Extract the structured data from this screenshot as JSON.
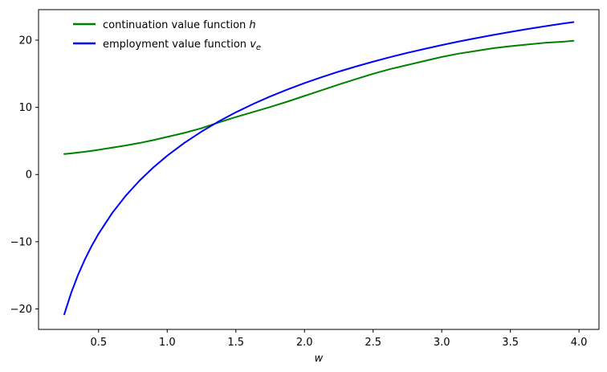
{
  "figure": {
    "background": "#ffffff",
    "frame_color": "#000000"
  },
  "legend": {
    "position": "upper left",
    "frame": false,
    "items": [
      {
        "label": "continuation value function ",
        "var": "h",
        "sub": "",
        "color": "#008000"
      },
      {
        "label": "employment value function ",
        "var": "v",
        "sub": "e",
        "color": "#0000ff"
      }
    ]
  },
  "chart_data": {
    "type": "line",
    "title": "",
    "xlabel": "w",
    "ylabel": "",
    "grid": false,
    "legend_position": "upper left",
    "xlim": [
      0.0625,
      4.1455
    ],
    "ylim": [
      -23.05,
      24.54
    ],
    "xticks": [
      0.5,
      1.0,
      1.5,
      2.0,
      2.5,
      3.0,
      3.5,
      4.0
    ],
    "xtick_labels": [
      "0.5",
      "1.0",
      "1.5",
      "2.0",
      "2.5",
      "3.0",
      "3.5",
      "4.0"
    ],
    "yticks": [
      -20,
      -10,
      0,
      10,
      20
    ],
    "ytick_labels": [
      "−20",
      "−10",
      "0",
      "10",
      "20"
    ],
    "x": [
      0.25,
      0.3,
      0.35,
      0.4,
      0.45,
      0.5,
      0.6,
      0.7,
      0.8,
      0.9,
      1.0,
      1.125,
      1.25,
      1.375,
      1.5,
      1.625,
      1.75,
      1.875,
      2.0,
      2.125,
      2.25,
      2.375,
      2.5,
      2.625,
      2.75,
      2.875,
      3.0,
      3.125,
      3.25,
      3.375,
      3.5,
      3.625,
      3.75,
      3.875,
      3.96
    ],
    "series": [
      {
        "name": "continuation value function h",
        "color": "#008000",
        "linewidth": 2,
        "values": [
          3.05,
          3.15,
          3.27,
          3.39,
          3.53,
          3.68,
          4.0,
          4.33,
          4.7,
          5.12,
          5.6,
          6.2,
          6.9,
          7.75,
          8.55,
          9.3,
          10.05,
          10.85,
          11.7,
          12.55,
          13.4,
          14.2,
          15.0,
          15.7,
          16.3,
          16.9,
          17.5,
          18.0,
          18.4,
          18.8,
          19.1,
          19.35,
          19.6,
          19.75,
          19.9
        ]
      },
      {
        "name": "employment value function v_e",
        "color": "#0000ff",
        "linewidth": 2,
        "values": [
          -20.81,
          -17.63,
          -14.95,
          -12.64,
          -10.61,
          -8.81,
          -5.7,
          -3.1,
          -0.87,
          1.07,
          2.8,
          4.71,
          6.39,
          7.9,
          9.26,
          10.49,
          11.62,
          12.65,
          13.61,
          14.49,
          15.32,
          16.08,
          16.8,
          17.48,
          18.11,
          18.7,
          19.26,
          19.8,
          20.3,
          20.77,
          21.22,
          21.65,
          22.06,
          22.45,
          22.69
        ]
      }
    ]
  }
}
